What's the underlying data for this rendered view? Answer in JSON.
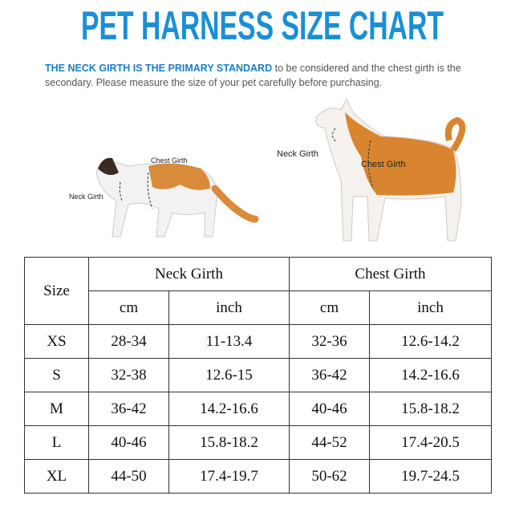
{
  "header": {
    "title": "PET HARNESS SIZE CHART"
  },
  "intro": {
    "highlight": "THE NECK GIRTH IS THE PRIMARY STANDARD",
    "text": " to be considered and the chest girth is the secondary. Please measure the size of your pet carefully before purchasing."
  },
  "illustrations": {
    "cat": {
      "neck": "Neck Girth",
      "chest": "Chest Girth"
    },
    "dog": {
      "neck": "Neck Girth",
      "chest": "Chest Girth"
    }
  },
  "table": {
    "size_header": "Size",
    "groups": [
      "Neck Girth",
      "Chest Girth"
    ],
    "units": [
      "cm",
      "inch",
      "cm",
      "inch"
    ],
    "rows": [
      [
        "XS",
        "28-34",
        "11-13.4",
        "32-36",
        "12.6-14.2"
      ],
      [
        "S",
        "32-38",
        "12.6-15",
        "36-42",
        "14.2-16.6"
      ],
      [
        "M",
        "36-42",
        "14.2-16.6",
        "40-46",
        "15.8-18.2"
      ],
      [
        "L",
        "40-46",
        "15.8-18.2",
        "44-52",
        "17.4-20.5"
      ],
      [
        "XL",
        "44-50",
        "17.4-19.7",
        "50-62",
        "19.7-24.5"
      ]
    ]
  }
}
